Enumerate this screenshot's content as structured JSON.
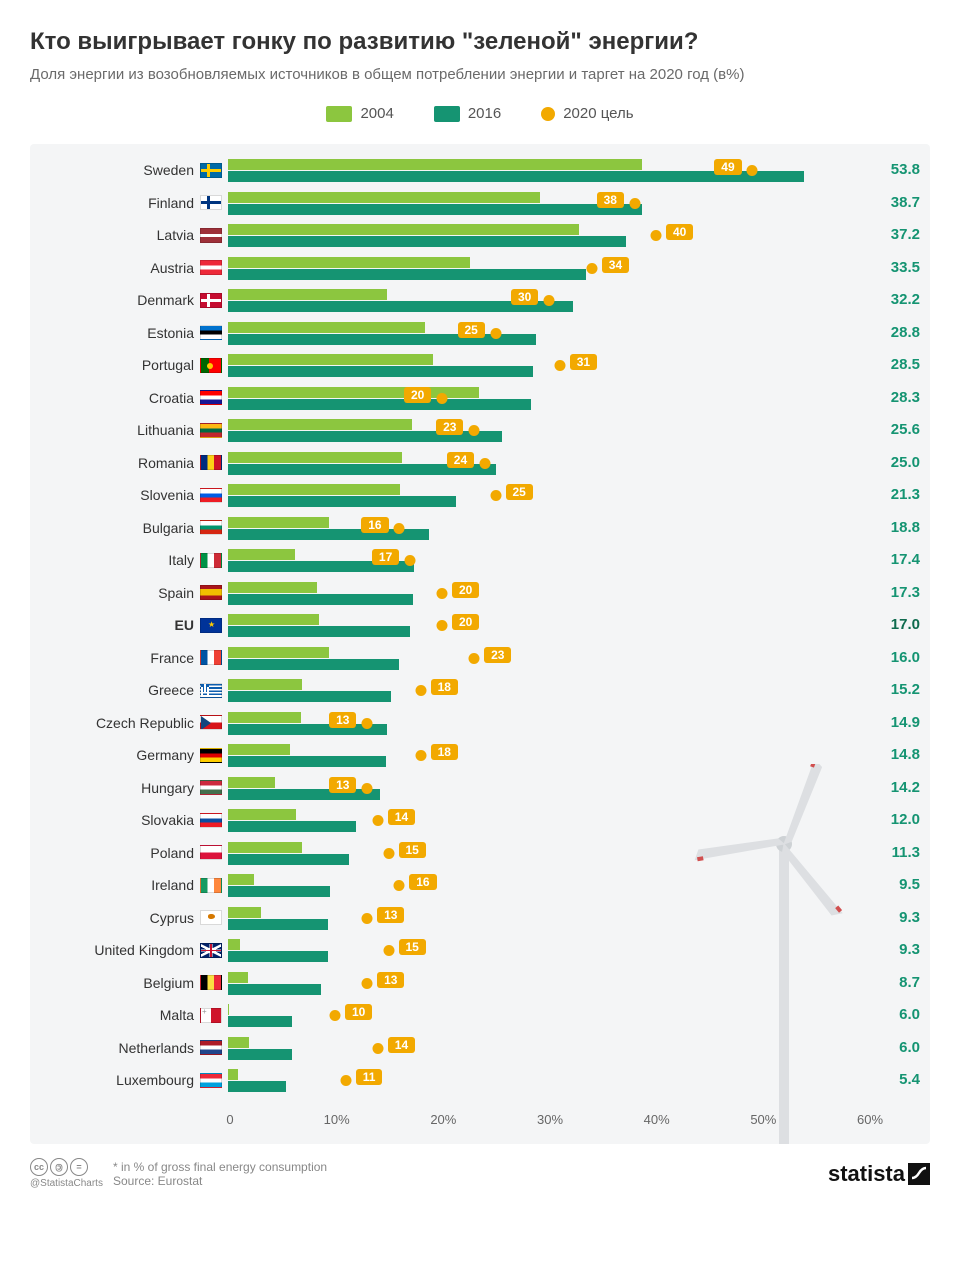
{
  "title": "Кто выигрывает гонку по развитию \"зеленой\" энергии?",
  "subtitle": "Доля энергии из возобновляемых источников в общем потреблении энергии и таргет на 2020 год (в%)",
  "legend": {
    "y2004": "2004",
    "y2016": "2016",
    "target": "2020 цель"
  },
  "colors": {
    "bar2004": "#8cc63f",
    "bar2016": "#159472",
    "target": "#f2a900",
    "value": "#159472",
    "eu_value": "#0f6b4e",
    "bg": "#f4f5f6"
  },
  "axis": {
    "min": 0,
    "max": 60,
    "step": 10,
    "suffix": "%",
    "ticks": [
      "0",
      "10%",
      "20%",
      "30%",
      "40%",
      "50%",
      "60%"
    ]
  },
  "countries": [
    {
      "name": "Sweden",
      "flag": "Sweden",
      "v2004": 38.7,
      "v2016": 53.8,
      "target": 49,
      "label": "53.8"
    },
    {
      "name": "Finland",
      "flag": "Finland",
      "v2004": 29.2,
      "v2016": 38.7,
      "target": 38,
      "label": "38.7"
    },
    {
      "name": "Latvia",
      "flag": "Latvia",
      "v2004": 32.8,
      "v2016": 37.2,
      "target": 40,
      "label": "37.2"
    },
    {
      "name": "Austria",
      "flag": "Austria",
      "v2004": 22.6,
      "v2016": 33.5,
      "target": 34,
      "label": "33.5"
    },
    {
      "name": "Denmark",
      "flag": "Denmark",
      "v2004": 14.9,
      "v2016": 32.2,
      "target": 30,
      "label": "32.2"
    },
    {
      "name": "Estonia",
      "flag": "Estonia",
      "v2004": 18.4,
      "v2016": 28.8,
      "target": 25,
      "label": "28.8"
    },
    {
      "name": "Portugal",
      "flag": "Portugal",
      "v2004": 19.2,
      "v2016": 28.5,
      "target": 31,
      "label": "28.5"
    },
    {
      "name": "Croatia",
      "flag": "Croatia",
      "v2004": 23.5,
      "v2016": 28.3,
      "target": 20,
      "label": "28.3"
    },
    {
      "name": "Lithuania",
      "flag": "Lithuania",
      "v2004": 17.2,
      "v2016": 25.6,
      "target": 23,
      "label": "25.6"
    },
    {
      "name": "Romania",
      "flag": "Romania",
      "v2004": 16.3,
      "v2016": 25.0,
      "target": 24,
      "label": "25.0"
    },
    {
      "name": "Slovenia",
      "flag": "Slovenia",
      "v2004": 16.1,
      "v2016": 21.3,
      "target": 25,
      "label": "21.3"
    },
    {
      "name": "Bulgaria",
      "flag": "Bulgaria",
      "v2004": 9.4,
      "v2016": 18.8,
      "target": 16,
      "label": "18.8"
    },
    {
      "name": "Italy",
      "flag": "Italy",
      "v2004": 6.3,
      "v2016": 17.4,
      "target": 17,
      "label": "17.4"
    },
    {
      "name": "Spain",
      "flag": "Spain",
      "v2004": 8.3,
      "v2016": 17.3,
      "target": 20,
      "label": "17.3"
    },
    {
      "name": "EU",
      "flag": "EU",
      "v2004": 8.5,
      "v2016": 17.0,
      "target": 20,
      "label": "17.0",
      "bold": true
    },
    {
      "name": "France",
      "flag": "France",
      "v2004": 9.4,
      "v2016": 16.0,
      "target": 23,
      "label": "16.0"
    },
    {
      "name": "Greece",
      "flag": "Greece",
      "v2004": 6.9,
      "v2016": 15.2,
      "target": 18,
      "label": "15.2"
    },
    {
      "name": "Czech Republic",
      "flag": "CzechRepublic",
      "v2004": 6.8,
      "v2016": 14.9,
      "target": 13,
      "label": "14.9"
    },
    {
      "name": "Germany",
      "flag": "Germany",
      "v2004": 5.8,
      "v2016": 14.8,
      "target": 18,
      "label": "14.8"
    },
    {
      "name": "Hungary",
      "flag": "Hungary",
      "v2004": 4.4,
      "v2016": 14.2,
      "target": 13,
      "label": "14.2"
    },
    {
      "name": "Slovakia",
      "flag": "Slovakia",
      "v2004": 6.4,
      "v2016": 12.0,
      "target": 14,
      "label": "12.0"
    },
    {
      "name": "Poland",
      "flag": "Poland",
      "v2004": 6.9,
      "v2016": 11.3,
      "target": 15,
      "label": "11.3"
    },
    {
      "name": "Ireland",
      "flag": "Ireland",
      "v2004": 2.4,
      "v2016": 9.5,
      "target": 16,
      "label": "9.5"
    },
    {
      "name": "Cyprus",
      "flag": "Cyprus",
      "v2004": 3.1,
      "v2016": 9.3,
      "target": 13,
      "label": "9.3"
    },
    {
      "name": "United Kingdom",
      "flag": "UnitedKingdom",
      "v2004": 1.1,
      "v2016": 9.3,
      "target": 15,
      "label": "9.3"
    },
    {
      "name": "Belgium",
      "flag": "Belgium",
      "v2004": 1.9,
      "v2016": 8.7,
      "target": 13,
      "label": "8.7"
    },
    {
      "name": "Malta",
      "flag": "Malta",
      "v2004": 0.1,
      "v2016": 6.0,
      "target": 10,
      "label": "6.0"
    },
    {
      "name": "Netherlands",
      "flag": "Netherlands",
      "v2004": 2.0,
      "v2016": 6.0,
      "target": 14,
      "label": "6.0"
    },
    {
      "name": "Luxembourg",
      "flag": "Luxembourg",
      "v2004": 0.9,
      "v2016": 5.4,
      "target": 11,
      "label": "5.4"
    }
  ],
  "footer": {
    "note": "* in % of gross final energy consumption",
    "source": "Source: Eurostat",
    "handle": "@StatistaCharts",
    "brand": "statista"
  }
}
